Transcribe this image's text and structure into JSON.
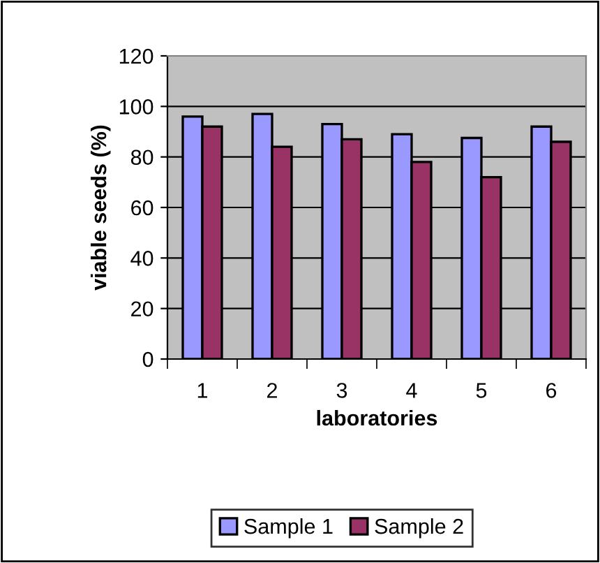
{
  "chart_data": {
    "type": "bar",
    "xlabel": "laboratories",
    "ylabel": "viable seeds (%)",
    "categories": [
      "1",
      "2",
      "3",
      "4",
      "5",
      "6"
    ],
    "series": [
      {
        "name": "Sample 1",
        "color": "#9999ff",
        "values": [
          96,
          97,
          93,
          89,
          87.5,
          92
        ]
      },
      {
        "name": "Sample 2",
        "color": "#993366",
        "values": [
          92,
          84,
          87,
          78,
          72,
          86
        ]
      }
    ],
    "ylim": [
      0,
      120
    ],
    "yticks": [
      0,
      20,
      40,
      60,
      80,
      100,
      120
    ],
    "grid": "y",
    "legend": "bottom"
  }
}
